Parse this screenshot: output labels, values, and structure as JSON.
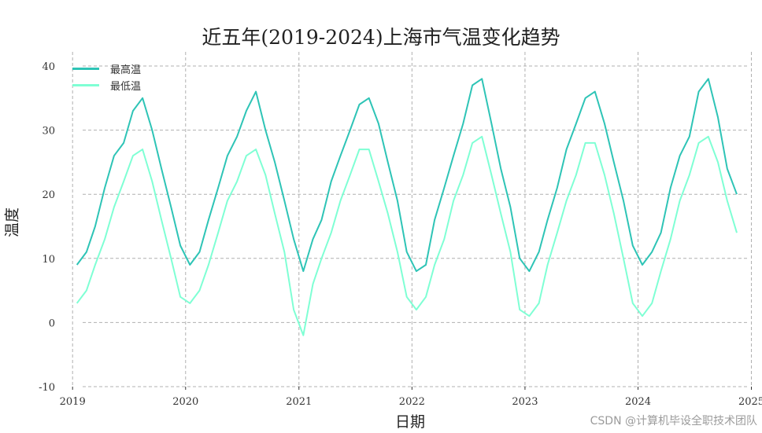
{
  "watermark": "CSDN @计算机毕设全职技术团队",
  "colors": {
    "max_line": "#2EC4B6",
    "min_line": "#7FFFD4",
    "grid": "#b0b0b0",
    "axis": "#333333"
  },
  "chart_data": {
    "type": "line",
    "title": "近五年(2019-2024)上海市气温变化趋势",
    "xlabel": "日期",
    "ylabel": "温度",
    "xlim": [
      "2018-12-01",
      "2025-01-15"
    ],
    "ylim": [
      -10,
      40
    ],
    "x_ticks": [
      "2019",
      "2020",
      "2021",
      "2022",
      "2023",
      "2024",
      "2025"
    ],
    "y_ticks": [
      -10,
      0,
      10,
      20,
      30,
      40
    ],
    "grid": true,
    "grid_style": "dashed",
    "legend_position": "top-left",
    "x": [
      "2019-01",
      "2019-02",
      "2019-03",
      "2019-04",
      "2019-05",
      "2019-06",
      "2019-07",
      "2019-08",
      "2019-09",
      "2019-10",
      "2019-11",
      "2019-12",
      "2020-01",
      "2020-02",
      "2020-03",
      "2020-04",
      "2020-05",
      "2020-06",
      "2020-07",
      "2020-08",
      "2020-09",
      "2020-10",
      "2020-11",
      "2020-12",
      "2021-01",
      "2021-02",
      "2021-03",
      "2021-04",
      "2021-05",
      "2021-06",
      "2021-07",
      "2021-08",
      "2021-09",
      "2021-10",
      "2021-11",
      "2021-12",
      "2022-01",
      "2022-02",
      "2022-03",
      "2022-04",
      "2022-05",
      "2022-06",
      "2022-07",
      "2022-08",
      "2022-09",
      "2022-10",
      "2022-11",
      "2022-12",
      "2023-01",
      "2023-02",
      "2023-03",
      "2023-04",
      "2023-05",
      "2023-06",
      "2023-07",
      "2023-08",
      "2023-09",
      "2023-10",
      "2023-11",
      "2023-12",
      "2024-01",
      "2024-02",
      "2024-03",
      "2024-04",
      "2024-05",
      "2024-06",
      "2024-07",
      "2024-08",
      "2024-09",
      "2024-10",
      "2024-11"
    ],
    "series": [
      {
        "name": "最高温",
        "color": "#2EC4B6",
        "values": [
          9,
          11,
          15,
          21,
          26,
          28,
          33,
          35,
          30,
          24,
          18,
          12,
          9,
          11,
          16,
          21,
          26,
          29,
          33,
          36,
          30,
          25,
          19,
          13,
          8,
          13,
          16,
          22,
          26,
          30,
          34,
          35,
          31,
          25,
          19,
          11,
          8,
          9,
          16,
          21,
          26,
          31,
          37,
          38,
          31,
          24,
          18,
          10,
          8,
          11,
          16,
          21,
          27,
          31,
          35,
          36,
          31,
          25,
          19,
          12,
          9,
          11,
          14,
          21,
          26,
          29,
          36,
          38,
          32,
          24,
          20
        ]
      },
      {
        "name": "最低温",
        "color": "#7FFFD4",
        "values": [
          3,
          5,
          9,
          13,
          18,
          22,
          26,
          27,
          22,
          16,
          10,
          4,
          3,
          5,
          9,
          14,
          19,
          22,
          26,
          27,
          23,
          17,
          11,
          2,
          -2,
          6,
          10,
          14,
          19,
          23,
          27,
          27,
          22,
          17,
          11,
          4,
          2,
          4,
          9,
          13,
          19,
          23,
          28,
          29,
          23,
          17,
          11,
          2,
          1,
          3,
          9,
          14,
          19,
          23,
          28,
          28,
          23,
          17,
          10,
          3,
          1,
          3,
          8,
          13,
          19,
          23,
          28,
          29,
          25,
          19,
          14
        ]
      }
    ]
  }
}
